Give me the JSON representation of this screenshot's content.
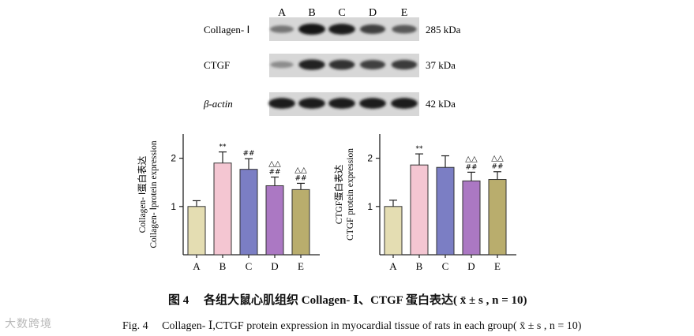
{
  "blot": {
    "lanes": [
      "A",
      "B",
      "C",
      "D",
      "E"
    ],
    "rows": [
      {
        "label": "Collagen- Ⅰ",
        "kda": "285 kDa",
        "intensity": [
          0.35,
          1.0,
          0.95,
          0.7,
          0.55
        ]
      },
      {
        "label": "CTGF",
        "kda": "37 kDa",
        "intensity": [
          0.2,
          0.9,
          0.8,
          0.7,
          0.75
        ]
      },
      {
        "label": "β-actin",
        "kda": "42 kDa",
        "intensity": [
          0.95,
          0.95,
          0.95,
          0.95,
          0.95
        ]
      }
    ]
  },
  "chart_data": [
    {
      "type": "bar",
      "ylabel_cn": "Collagen- Ⅰ蛋白表达",
      "ylabel_en": "Collagen- Ⅰprotein expression",
      "categories": [
        "A",
        "B",
        "C",
        "D",
        "E"
      ],
      "values": [
        1.0,
        1.9,
        1.77,
        1.43,
        1.35
      ],
      "errors": [
        0.12,
        0.23,
        0.22,
        0.18,
        0.13
      ],
      "annotations": [
        [
          "",
          ""
        ],
        [
          "",
          "**"
        ],
        [
          "",
          "##"
        ],
        [
          "△△",
          "##"
        ],
        [
          "△△",
          "##"
        ]
      ],
      "colors": [
        "#e4ddb2",
        "#f4c6d2",
        "#7b7ec4",
        "#ab78c3",
        "#b9ad6d"
      ],
      "yticks": [
        1,
        2
      ],
      "ylim": [
        0,
        2.5
      ]
    },
    {
      "type": "bar",
      "ylabel_cn": "CTGF蛋白表达",
      "ylabel_en": "CTGF protein expression",
      "categories": [
        "A",
        "B",
        "C",
        "D",
        "E"
      ],
      "values": [
        1.0,
        1.86,
        1.81,
        1.53,
        1.56
      ],
      "errors": [
        0.13,
        0.23,
        0.24,
        0.18,
        0.16
      ],
      "annotations": [
        [
          "",
          ""
        ],
        [
          "",
          "**"
        ],
        [
          "",
          ""
        ],
        [
          "△△",
          "##"
        ],
        [
          "△△",
          "##"
        ]
      ],
      "colors": [
        "#e4ddb2",
        "#f4c6d2",
        "#7b7ec4",
        "#ab78c3",
        "#b9ad6d"
      ],
      "yticks": [
        1,
        2
      ],
      "ylim": [
        0,
        2.5
      ]
    }
  ],
  "caption": {
    "cn": "图 4　 各组大鼠心肌组织 Collagen- Ⅰ、CTGF 蛋白表达( x̄ ± s , n = 10)",
    "en": "Fig. 4　 Collagen- Ⅰ,CTGF protein expression in myocardial tissue of rats in each group( x̄ ± s , n = 10)"
  },
  "watermark": "大数跨境"
}
